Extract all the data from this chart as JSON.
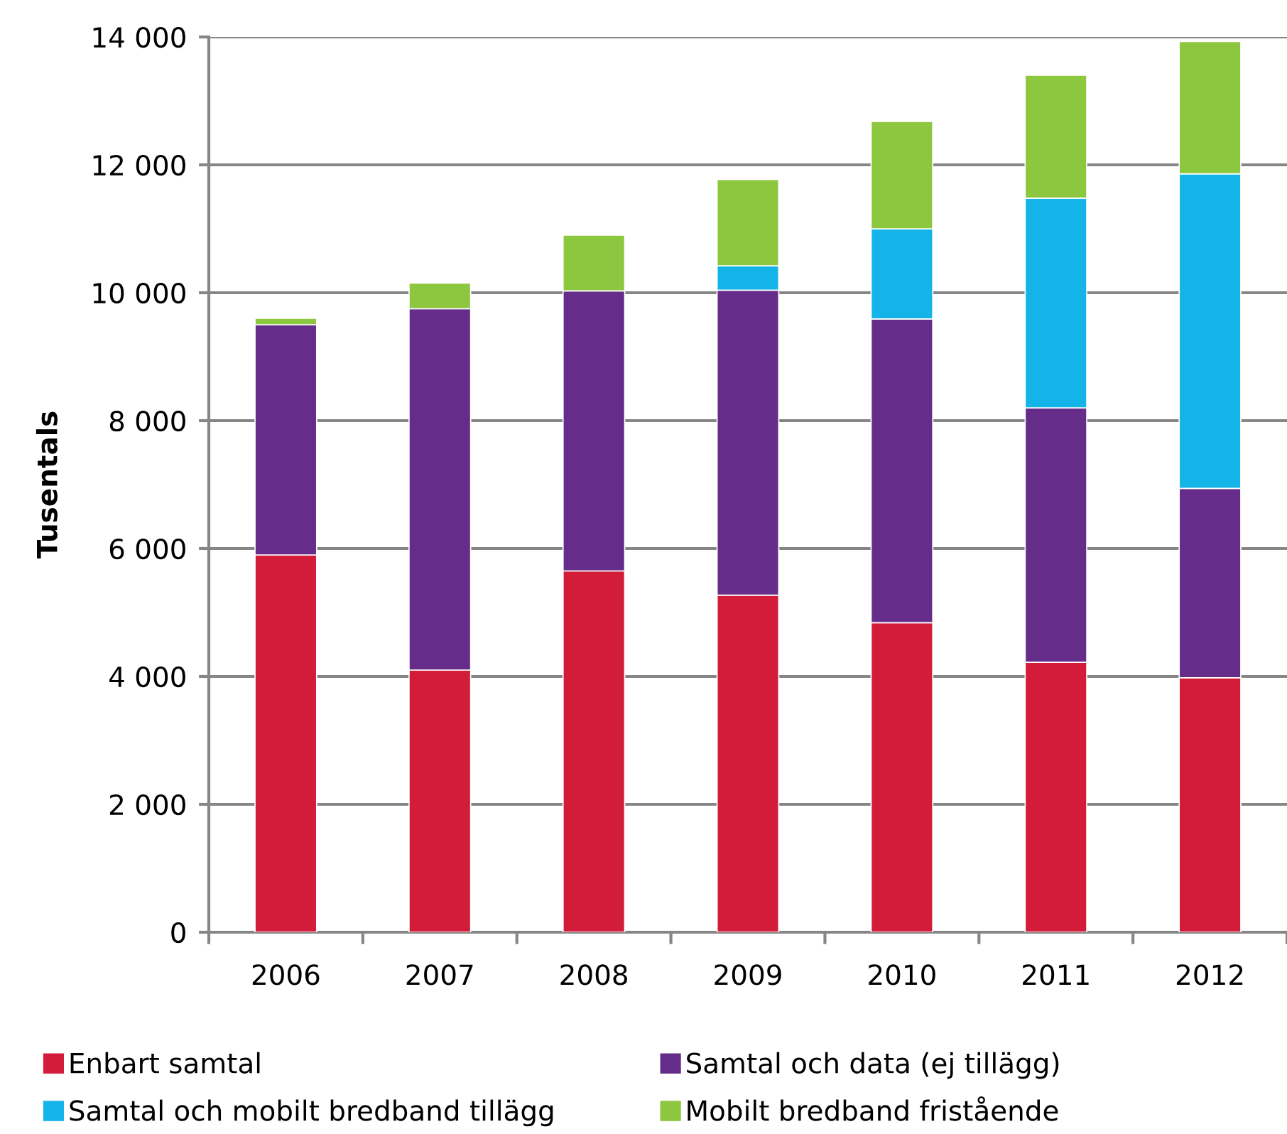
{
  "chart_data": {
    "type": "bar",
    "stacked": true,
    "ylabel": "Tusentals",
    "categories": [
      "2006",
      "2007",
      "2008",
      "2009",
      "2010",
      "2011",
      "2012"
    ],
    "series": [
      {
        "name": "Enbart samtal",
        "color": "#d21c3a",
        "values": [
          5900,
          4100,
          5650,
          5270,
          4840,
          4220,
          3980
        ]
      },
      {
        "name": "Samtal och data (ej tillägg)",
        "color": "#652d89",
        "values": [
          3600,
          5650,
          4380,
          4770,
          4750,
          3980,
          2960
        ]
      },
      {
        "name": "Samtal och mobilt bredband tillägg",
        "color": "#15b4e8",
        "values": [
          null,
          null,
          null,
          380,
          1410,
          3280,
          4920
        ]
      },
      {
        "name": "Mobilt bredband fristående",
        "color": "#8dc63f",
        "values": [
          100,
          400,
          870,
          1350,
          1680,
          1920,
          2070
        ]
      }
    ],
    "ylim": [
      0,
      14000
    ],
    "yticks": [
      0,
      {
        "value": 2000,
        "label": "2 000"
      },
      {
        "value": 4000,
        "label": "4 000"
      },
      {
        "value": 6000,
        "label": "6 000"
      },
      {
        "value": 8000,
        "label": "8 000"
      },
      {
        "value": 10000,
        "label": "10 000"
      },
      {
        "value": 12000,
        "label": "12 000"
      },
      {
        "value": 14000,
        "label": "14 000"
      }
    ],
    "grid": "y",
    "legend": "bottom"
  }
}
